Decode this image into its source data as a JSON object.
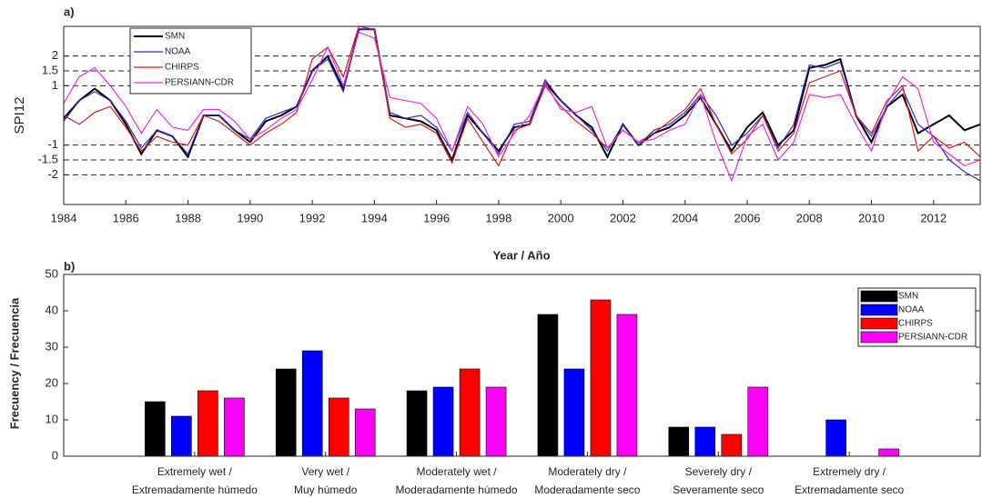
{
  "chart_data": [
    {
      "type": "line",
      "title": "a)",
      "ylabel": "SPI12",
      "xlabel": "Year / Año",
      "x": [
        1984,
        1984.5,
        1985,
        1985.5,
        1986,
        1986.5,
        1987,
        1987.5,
        1988,
        1988.5,
        1989,
        1989.5,
        1990,
        1990.5,
        1991,
        1991.5,
        1992,
        1992.5,
        1993,
        1993.5,
        1994,
        1994.5,
        1995,
        1995.5,
        1996,
        1996.5,
        1997,
        1997.5,
        1998,
        1998.5,
        1999,
        1999.5,
        2000,
        2000.5,
        2001,
        2001.5,
        2002,
        2002.5,
        2003,
        2003.5,
        2004,
        2004.5,
        2005,
        2005.5,
        2006,
        2006.5,
        2007,
        2007.5,
        2008,
        2008.5,
        2009,
        2009.5,
        2010,
        2010.5,
        2011,
        2011.5,
        2012,
        2012.5,
        2013,
        2013.5
      ],
      "series": [
        {
          "name": "SMN",
          "color": "#000000",
          "width": 2,
          "values": [
            -0.1,
            0.5,
            0.9,
            0.5,
            -0.3,
            -1.3,
            -0.5,
            -0.7,
            -1.4,
            0.0,
            0.0,
            -0.5,
            -0.9,
            -0.2,
            0.0,
            0.3,
            1.5,
            2.0,
            0.9,
            2.9,
            2.9,
            0.0,
            -0.1,
            -0.2,
            -0.5,
            -1.5,
            0.0,
            -0.6,
            -1.2,
            -0.4,
            -0.3,
            1.1,
            0.5,
            0.0,
            -0.4,
            -1.4,
            -0.3,
            -1.0,
            -0.6,
            -0.4,
            0.0,
            0.6,
            -0.3,
            -1.2,
            -0.4,
            0.1,
            -1.0,
            -0.5,
            1.6,
            1.7,
            1.9,
            0.0,
            -0.9,
            0.3,
            0.7,
            -0.6,
            -0.3,
            0.0,
            -0.5,
            -0.3
          ]
        },
        {
          "name": "NOAA",
          "color": "#2b2bd6",
          "width": 1.2,
          "values": [
            -0.2,
            0.5,
            0.8,
            0.5,
            -0.2,
            -1.1,
            -0.5,
            -0.7,
            -1.3,
            0.0,
            0.0,
            -0.5,
            -0.8,
            -0.1,
            0.1,
            0.3,
            1.5,
            1.9,
            0.8,
            2.9,
            2.9,
            0.1,
            -0.1,
            0.0,
            -0.4,
            -1.2,
            0.1,
            -0.6,
            -1.3,
            -0.3,
            -0.2,
            1.2,
            0.5,
            0.0,
            -0.5,
            -1.2,
            -0.3,
            -1.0,
            -0.5,
            -0.3,
            0.1,
            0.7,
            0.0,
            -1.0,
            -0.6,
            0.0,
            -1.1,
            -0.3,
            1.7,
            1.6,
            1.8,
            0.0,
            -0.7,
            0.3,
            0.9,
            -0.3,
            -0.7,
            -1.5,
            -1.9,
            -2.2
          ]
        },
        {
          "name": "CHIRPS",
          "color": "#e01b1b",
          "width": 1.2,
          "values": [
            0.0,
            -0.3,
            0.1,
            0.3,
            -0.4,
            -1.2,
            -0.7,
            -0.9,
            -1.0,
            0.0,
            -0.2,
            -0.6,
            -1.0,
            -0.6,
            -0.3,
            0.1,
            1.9,
            2.3,
            1.3,
            3.0,
            2.9,
            -0.1,
            -0.4,
            -0.3,
            -0.6,
            -1.6,
            -0.1,
            -0.9,
            -1.7,
            -0.5,
            -0.3,
            1.0,
            0.3,
            -0.2,
            -0.6,
            -1.1,
            -0.5,
            -0.9,
            -0.6,
            -0.2,
            0.2,
            0.9,
            -0.3,
            -1.3,
            -0.8,
            0.0,
            -1.2,
            -0.6,
            1.1,
            1.3,
            1.5,
            0.0,
            -0.6,
            0.5,
            1.0,
            -1.2,
            -0.7,
            -1.1,
            -0.9,
            -1.4
          ]
        },
        {
          "name": "PERSIANN-CDR",
          "color": "#e62ee6",
          "width": 1.2,
          "values": [
            0.4,
            1.3,
            1.6,
            1.0,
            0.3,
            -0.6,
            0.2,
            -0.4,
            -0.5,
            0.2,
            0.2,
            -0.2,
            -0.8,
            -0.5,
            -0.1,
            0.2,
            1.2,
            2.3,
            1.0,
            2.8,
            2.6,
            0.6,
            0.5,
            0.4,
            -0.1,
            -1.2,
            0.3,
            -0.3,
            -1.4,
            -0.6,
            0.0,
            1.1,
            0.2,
            0.1,
            0.3,
            -1.1,
            -0.5,
            -0.9,
            -0.8,
            -0.5,
            -0.3,
            0.7,
            -0.9,
            -2.2,
            -0.7,
            -0.3,
            -1.5,
            -0.9,
            0.7,
            0.6,
            0.7,
            -0.3,
            -1.2,
            0.4,
            1.3,
            0.9,
            -0.9,
            -1.3,
            -1.7,
            -1.5
          ]
        }
      ],
      "xlim": [
        1984,
        2013.5
      ],
      "xticks": [
        1984,
        1986,
        1988,
        1990,
        1992,
        1994,
        1996,
        1998,
        2000,
        2002,
        2004,
        2006,
        2008,
        2010,
        2012
      ],
      "ylim": [
        -3,
        3
      ],
      "yticks": [
        -2,
        -1.5,
        -1,
        1,
        1.5,
        2
      ],
      "grid": "dashed",
      "legend": "top-left"
    },
    {
      "type": "bar",
      "title": "b)",
      "ylabel": "Frecuency / Frecuencia",
      "categories": [
        [
          "Extremely wet /",
          "Extremadamente húmedo"
        ],
        [
          "Very wet /",
          "Muy húmedo"
        ],
        [
          "Moderately wet /",
          "Moderadamente húmedo"
        ],
        [
          "Moderately dry /",
          "Moderadamente seco"
        ],
        [
          "Severely dry /",
          "Severamente seco"
        ],
        [
          "Extremely dry /",
          "Extremadamente seco"
        ]
      ],
      "series": [
        {
          "name": "SMN",
          "color": "#000000",
          "values": [
            15,
            24,
            18,
            39,
            8,
            0
          ]
        },
        {
          "name": "NOAA",
          "color": "#0000ff",
          "values": [
            11,
            29,
            19,
            24,
            8,
            10
          ]
        },
        {
          "name": "CHIRPS",
          "color": "#ff0000",
          "values": [
            18,
            16,
            24,
            43,
            6,
            0
          ]
        },
        {
          "name": "PERSIANN-CDR",
          "color": "#ff00ff",
          "values": [
            16,
            13,
            19,
            39,
            19,
            2
          ]
        }
      ],
      "ylim": [
        0,
        50
      ],
      "yticks": [
        0,
        10,
        20,
        30,
        40,
        50
      ],
      "legend": "top-right"
    }
  ]
}
